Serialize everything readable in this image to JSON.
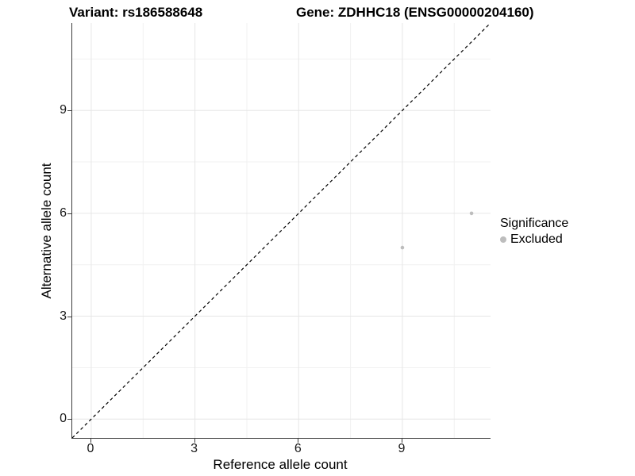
{
  "titles": {
    "variant": "Variant: rs186588648",
    "gene": "Gene: ZDHHC18 (ENSG00000204160)"
  },
  "axes": {
    "x": {
      "label": "Reference allele count",
      "tick_labels": [
        "0",
        "3",
        "6",
        "9"
      ]
    },
    "y": {
      "label": "Alternative allele count",
      "tick_labels": [
        "0",
        "3",
        "6",
        "9"
      ]
    }
  },
  "legend": {
    "title": "Significance",
    "items": [
      {
        "label": "Excluded",
        "color": "#bdbdbd"
      }
    ]
  },
  "chart_data": {
    "type": "scatter",
    "title": "Variant: rs186588648 | Gene: ZDHHC18 (ENSG00000204160)",
    "xlabel": "Reference allele count",
    "ylabel": "Alternative allele count",
    "xlim": [
      -0.55,
      11.55
    ],
    "ylim": [
      -0.55,
      11.55
    ],
    "x_ticks": [
      0,
      3,
      6,
      9
    ],
    "y_ticks": [
      0,
      3,
      6,
      9
    ],
    "x_minor_ticks": [
      1.5,
      4.5,
      7.5,
      10.5
    ],
    "y_minor_ticks": [
      1.5,
      4.5,
      7.5,
      10.5
    ],
    "grid": true,
    "legend_position": "right",
    "series": [
      {
        "name": "Excluded",
        "color": "#bdbdbd",
        "points": [
          [
            9,
            5
          ],
          [
            11,
            6
          ]
        ]
      }
    ],
    "reference_line": {
      "description": "identity line y = x",
      "style": "dashed",
      "color": "#000000"
    }
  },
  "colors": {
    "grid_major": "#e6e6e6",
    "grid_minor": "#f1f1f1",
    "axis_line": "#3c3c3c",
    "point": "#bdbdbd",
    "dashed_line": "#000000"
  }
}
